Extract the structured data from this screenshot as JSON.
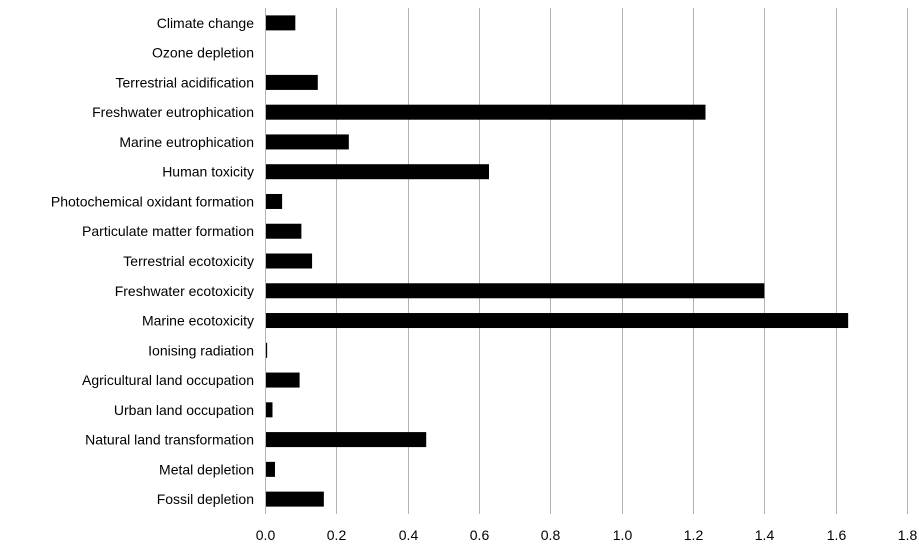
{
  "chart_data": {
    "type": "bar",
    "orientation": "horizontal",
    "categories": [
      "Climate change",
      "Ozone depletion",
      "Terrestrial acidification",
      "Freshwater eutrophication",
      "Marine eutrophication",
      "Human toxicity",
      "Photochemical oxidant formation",
      "Particulate matter formation",
      "Terrestrial ecotoxicity",
      "Freshwater ecotoxicity",
      "Marine ecotoxicity",
      "Ionising radiation",
      "Agricultural land occupation",
      "Urban land occupation",
      "Natural land transformation",
      "Metal depletion",
      "Fossil depletion"
    ],
    "values": [
      0.085,
      0.002,
      0.148,
      1.235,
      0.235,
      0.628,
      0.048,
      0.102,
      0.132,
      1.4,
      1.635,
      0.006,
      0.097,
      0.021,
      0.452,
      0.028,
      0.165
    ],
    "xlim": [
      0,
      1.8
    ],
    "xticks": [
      "0.0",
      "0.2",
      "0.4",
      "0.6",
      "0.8",
      "1.0",
      "1.2",
      "1.4",
      "1.6",
      "1.8"
    ],
    "title": "",
    "xlabel": "",
    "ylabel": "",
    "grid": "vertical",
    "legend": "none",
    "bar_color": "#000000",
    "grid_color": "#b3b3b3"
  }
}
